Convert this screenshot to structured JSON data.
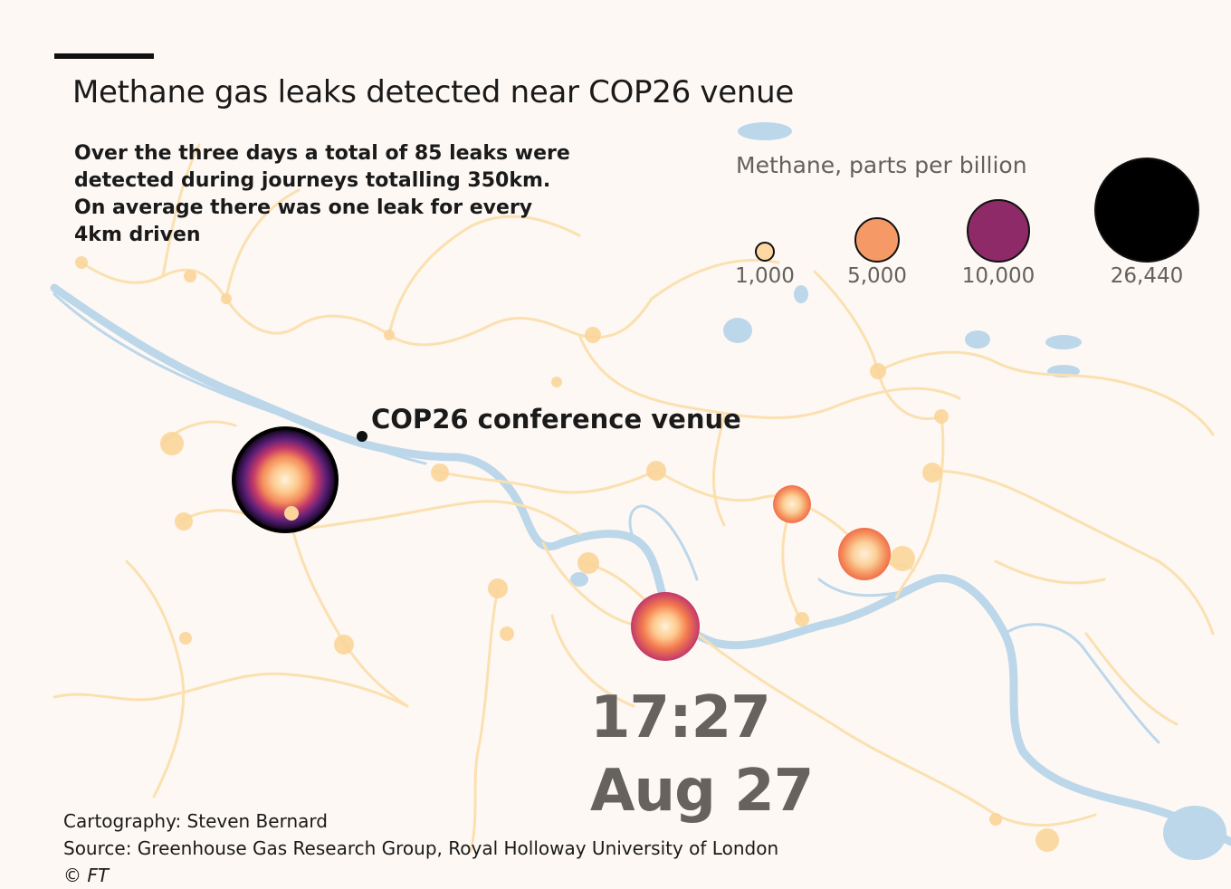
{
  "header": {
    "title": "Methane gas leaks detected near COP26 venue",
    "description": [
      "Over the three days a total of 85 leaks were",
      "detected during journeys totalling 350km.",
      "On average there was one leak for every",
      "4km driven"
    ]
  },
  "legend": {
    "title": "Methane, parts per billion",
    "items": [
      {
        "label": "1,000",
        "value": 1000,
        "color": "#fcd9a3"
      },
      {
        "label": "5,000",
        "value": 5000,
        "color": "#f59a66"
      },
      {
        "label": "10,000",
        "value": 10000,
        "color": "#8e2a67"
      },
      {
        "label": "26,440",
        "value": 26440,
        "color": "#000000"
      }
    ]
  },
  "map": {
    "venue_label": "COP26 conference venue",
    "time": "17:27",
    "date": "Aug 27",
    "colors": {
      "background": "#fdf8f4",
      "route": "#fbe0b0",
      "route_marker": "#fbd59a",
      "water": "#bcd7ea",
      "leak_ramp": [
        "#000000",
        "#5b1e77",
        "#c2386a",
        "#f47b4e",
        "#fdd29b",
        "#fff2d8"
      ]
    },
    "leak_hotspots": [
      {
        "name": "west",
        "peak_ppb": 26440
      },
      {
        "name": "south-centre",
        "peak_ppb": 10000
      },
      {
        "name": "east",
        "peak_ppb": 5000
      },
      {
        "name": "north-east",
        "peak_ppb": 5000
      }
    ]
  },
  "footer": {
    "cartography": "Cartography: Steven Bernard",
    "source": "Source: Greenhouse Gas Research Group, Royal Holloway University of London",
    "copyright": "© FT"
  }
}
